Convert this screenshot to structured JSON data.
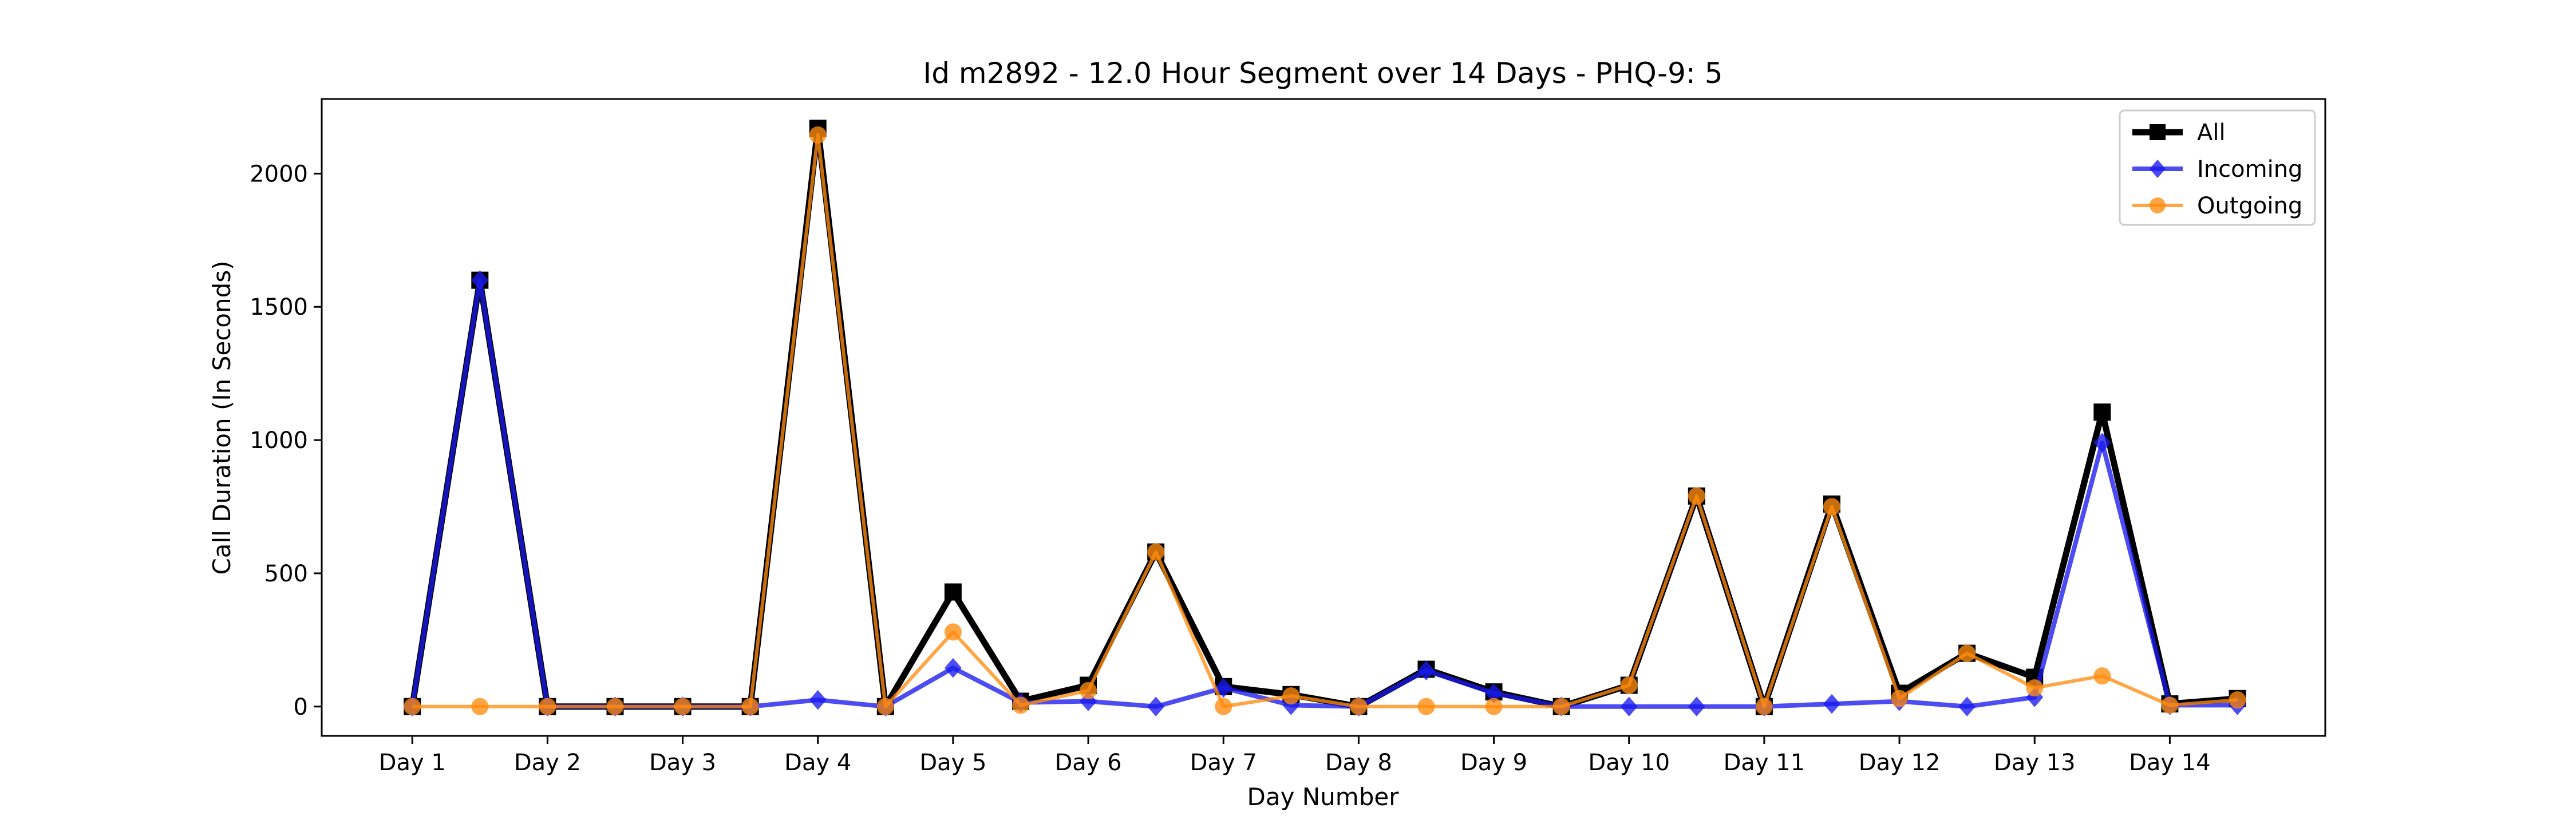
{
  "chart_data": {
    "type": "line",
    "title": "Id m2892 - 12.0 Hour Segment over 14 Days - PHQ-9: 5",
    "xlabel": "Day Number",
    "ylabel": "Call Duration (In Seconds)",
    "x": [
      1,
      1.5,
      2,
      2.5,
      3,
      3.5,
      4,
      4.5,
      5,
      5.5,
      6,
      6.5,
      7,
      7.5,
      8,
      8.5,
      9,
      9.5,
      10,
      10.5,
      11,
      11.5,
      12,
      12.5,
      13,
      13.5,
      14,
      14.5
    ],
    "xlim": [
      0.33,
      15.15
    ],
    "ylim": [
      -110,
      2280
    ],
    "x_ticks": [
      1,
      2,
      3,
      4,
      5,
      6,
      7,
      8,
      9,
      10,
      11,
      12,
      13,
      14
    ],
    "x_tick_labels": [
      "Day 1",
      "Day 2",
      "Day 3",
      "Day 4",
      "Day 5",
      "Day 6",
      "Day 7",
      "Day 8",
      "Day 9",
      "Day 10",
      "Day 11",
      "Day 12",
      "Day 13",
      "Day 14"
    ],
    "y_ticks": [
      0,
      500,
      1000,
      1500,
      2000
    ],
    "y_tick_labels": [
      "0",
      "500",
      "1000",
      "1500",
      "2000"
    ],
    "grid": false,
    "legend_position": "top-right",
    "series": [
      {
        "name": "All",
        "color": "#000000",
        "marker": "square",
        "values": [
          0,
          1600,
          0,
          0,
          0,
          0,
          2170,
          0,
          430,
          20,
          80,
          580,
          75,
          45,
          0,
          140,
          55,
          0,
          80,
          790,
          0,
          760,
          50,
          200,
          110,
          1105,
          10,
          30
        ]
      },
      {
        "name": "Incoming",
        "color": "#1a1aee",
        "marker": "diamond",
        "values": [
          0,
          1600,
          0,
          0,
          0,
          0,
          25,
          0,
          145,
          15,
          20,
          0,
          70,
          5,
          0,
          135,
          50,
          0,
          0,
          0,
          0,
          10,
          20,
          0,
          35,
          990,
          5,
          5
        ]
      },
      {
        "name": "Outgoing",
        "color": "#ff8c0e",
        "marker": "circle",
        "values": [
          0,
          0,
          0,
          0,
          0,
          0,
          2145,
          0,
          280,
          5,
          60,
          580,
          0,
          40,
          0,
          0,
          0,
          0,
          80,
          790,
          0,
          750,
          30,
          200,
          70,
          115,
          5,
          25
        ]
      }
    ]
  }
}
